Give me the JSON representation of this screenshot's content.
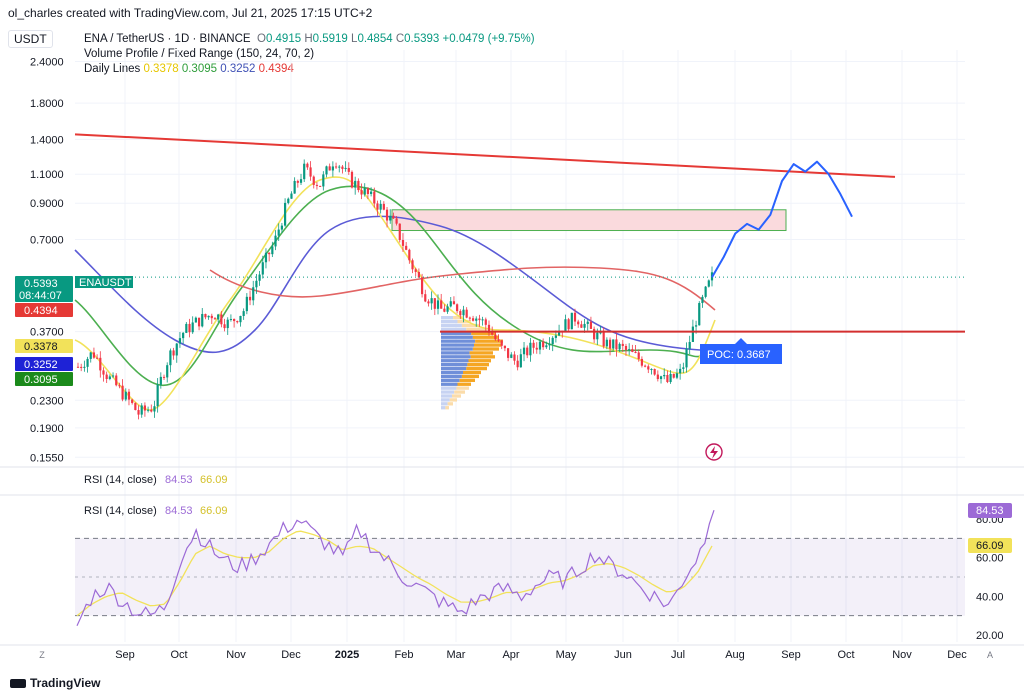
{
  "credit": "ol_charles created with TradingView.com, Jul 21, 2025 17:15 UTC+2",
  "quote_currency": "USDT",
  "legend": {
    "symbol": "ENA / TetherUS · 1D · BINANCE",
    "open_label": "O",
    "open": "0.4915",
    "high_label": "H",
    "high": "0.5919",
    "low_label": "L",
    "low": "0.4854",
    "close_label": "C",
    "close": "0.5393",
    "change": "+0.0479 (+9.75%)",
    "volume_profile": "Volume Profile / Fixed Range (150, 24, 70, 2)",
    "daily_lines_label": "Daily Lines",
    "daily_lines": [
      {
        "value": "0.3378",
        "color": "#f2e25a"
      },
      {
        "value": "0.3095",
        "color": "#4caf50"
      },
      {
        "value": "0.3252",
        "color": "#3f51b5"
      },
      {
        "value": "0.4394",
        "color": "#e53935"
      }
    ]
  },
  "rsi_label": "RSI (14, close)",
  "rsi_value": "84.53",
  "rsi_ma_value": "66.09",
  "brand": "TradingView",
  "chart_data": {
    "type": "line",
    "title": "ENA / TetherUS · 1D · BINANCE",
    "scale": "log",
    "price_axis_ticks": [
      2.4,
      1.8,
      1.4,
      1.1,
      0.9,
      0.7,
      0.37,
      0.23,
      0.19,
      0.155
    ],
    "price_axis_labels": [
      "2.4000",
      "1.8000",
      "1.4000",
      "1.1000",
      "0.9000",
      "0.7000",
      "0.3700",
      "0.2300",
      "0.1900",
      "0.1550"
    ],
    "x_ticks": [
      "Sep",
      "Oct",
      "Nov",
      "Dec",
      "2025",
      "Feb",
      "Mar",
      "Apr",
      "May",
      "Jun",
      "Jul",
      "Aug",
      "Sep",
      "Oct",
      "Nov",
      "Dec"
    ],
    "ylim": [
      0.15,
      2.6
    ],
    "price_tags": [
      {
        "label": "0.5393",
        "sub": "08:44:07",
        "name": "ENAUSDT",
        "value": 0.5393,
        "color": "#089981"
      },
      {
        "label": "0.4394",
        "value": 0.4394,
        "color": "#e53935"
      },
      {
        "label": "0.3378",
        "value": 0.3378,
        "color": "#f2e25a",
        "text_color": "#131722"
      },
      {
        "label": "0.3252",
        "value": 0.3252,
        "color": "#1e22d6"
      },
      {
        "label": "0.3095",
        "value": 0.3095,
        "color": "#1b8a1b"
      }
    ],
    "poc_label": "POC: 0.3687",
    "poc": 0.3687,
    "resistance_line": {
      "start": 1.45,
      "end": 1.08
    },
    "horizontal_support": 0.37,
    "supply_zone": [
      0.745,
      0.86
    ],
    "close_series_approx": [
      0.29,
      0.32,
      0.27,
      0.24,
      0.21,
      0.22,
      0.31,
      0.37,
      0.4,
      0.42,
      0.39,
      0.43,
      0.55,
      0.68,
      0.93,
      1.14,
      1.02,
      1.23,
      1.06,
      0.97,
      0.88,
      0.77,
      0.6,
      0.48,
      0.43,
      0.44,
      0.42,
      0.39,
      0.33,
      0.3,
      0.33,
      0.35,
      0.38,
      0.41,
      0.37,
      0.34,
      0.33,
      0.31,
      0.29,
      0.26,
      0.28,
      0.41,
      0.5393
    ],
    "projection_series_approx": [
      0.5393,
      0.62,
      0.73,
      0.78,
      0.75,
      0.83,
      1.05,
      1.18,
      1.12,
      1.2,
      1.1,
      0.96,
      0.82
    ]
  },
  "rsi_chart": {
    "ticks": [
      80,
      60,
      40,
      20
    ],
    "tick_labels": [
      "80.00",
      "60.00",
      "40.00",
      "20.00"
    ],
    "overbought": 70,
    "oversold": 30,
    "middle": 50,
    "rsi_series_approx": [
      25,
      40,
      45,
      38,
      32,
      30,
      35,
      60,
      74,
      65,
      58,
      55,
      60,
      67,
      75,
      80,
      72,
      66,
      60,
      75,
      65,
      58,
      50,
      45,
      40,
      35,
      32,
      38,
      42,
      44,
      40,
      46,
      50,
      48,
      55,
      62,
      56,
      52,
      45,
      40,
      35,
      50,
      62,
      84.53
    ],
    "ma_series_approx": [
      30,
      36,
      40,
      42,
      38,
      35,
      36,
      48,
      62,
      66,
      62,
      60,
      60,
      63,
      70,
      74,
      72,
      69,
      64,
      66,
      65,
      60,
      55,
      50,
      46,
      41,
      37,
      37,
      39,
      42,
      42,
      44,
      47,
      48,
      51,
      56,
      57,
      55,
      51,
      46,
      42,
      44,
      52,
      66.09
    ]
  },
  "colors": {
    "rsi": "#9c6ad6",
    "rsi_ma": "#f2e25a",
    "up": "#089981",
    "down": "#f23645",
    "resistance": "#e53935",
    "projection": "#2962ff",
    "zone_fill": "#fadadd",
    "zone_border": "#4caf50",
    "poc": "#2962ff"
  }
}
